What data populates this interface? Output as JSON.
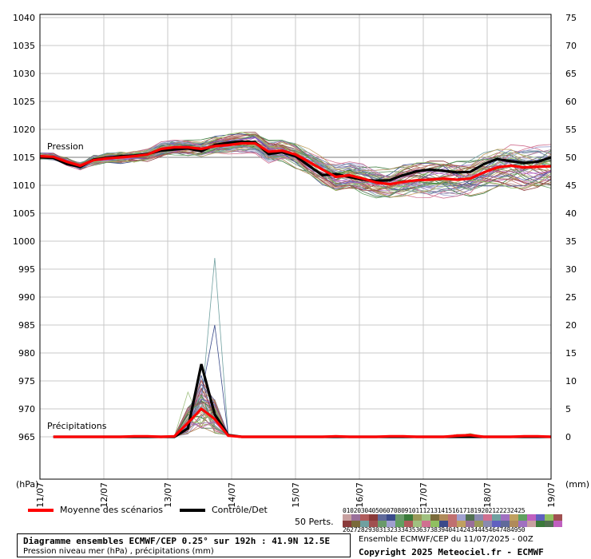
{
  "chart_data": {
    "type": "line",
    "pressure_axis": {
      "label": "(hPa)",
      "range": [
        965,
        1040
      ],
      "ticks": [
        965,
        970,
        975,
        980,
        985,
        990,
        995,
        1000,
        1005,
        1010,
        1015,
        1020,
        1025,
        1030,
        1035,
        1040
      ]
    },
    "precip_axis": {
      "label": "(mm)",
      "range": [
        0,
        75
      ],
      "ticks": [
        0,
        5,
        10,
        15,
        20,
        25,
        30,
        35,
        40,
        45,
        50,
        55,
        60,
        65,
        70,
        75
      ]
    },
    "x_ticks": [
      "11/07",
      "12/07",
      "13/07",
      "14/07",
      "15/07",
      "16/07",
      "17/07",
      "18/07",
      "19/07"
    ],
    "annotations": {
      "pressure": "Pression",
      "precip": "Précipitations"
    },
    "grid": true,
    "reference_line_hpa": 1015,
    "step_hours": 6,
    "series": [
      {
        "name": "Moyenne des scénarios",
        "color": "#ff0000",
        "pressure": [
          1015.2,
          1015.1,
          1014.2,
          1013.5,
          1014.5,
          1014.8,
          1015.0,
          1015.2,
          1015.5,
          1016.5,
          1016.8,
          1016.8,
          1016.5,
          1017.0,
          1017.2,
          1017.5,
          1017.5,
          1016.0,
          1016.2,
          1015.5,
          1014.2,
          1012.8,
          1011.5,
          1011.8,
          1011.2,
          1010.5,
          1010.2,
          1010.6,
          1010.9,
          1011.0,
          1011.2,
          1011.0,
          1011.2,
          1012.3,
          1013.2,
          1013.5,
          1013.2,
          1013.3,
          1013.4
        ],
        "precip": [
          null,
          0,
          0,
          0,
          0,
          0,
          0,
          0.1,
          0.1,
          0,
          0.1,
          2.5,
          5,
          3.2,
          0.2,
          0,
          0,
          0,
          0,
          0,
          0,
          0,
          0.1,
          0,
          0,
          0,
          0.1,
          0.1,
          0,
          0,
          0,
          0.2,
          0.3,
          0,
          0,
          0,
          0.1,
          0.1,
          0
        ]
      },
      {
        "name": "Contrôle/Det",
        "color": "#000000",
        "pressure": [
          1015.0,
          1014.9,
          1013.8,
          1013.3,
          1014.6,
          1014.9,
          1015.2,
          1015.3,
          1015.6,
          1016.2,
          1016.4,
          1016.6,
          1016.1,
          1017.2,
          1017.6,
          1017.8,
          1017.7,
          1015.6,
          1015.9,
          1015.2,
          1013.5,
          1011.8,
          1012.0,
          1011.5,
          1011.0,
          1010.8,
          1010.9,
          1011.8,
          1012.5,
          1012.8,
          1012.6,
          1012.3,
          1012.4,
          1013.8,
          1014.7,
          1014.3,
          1014.0,
          1014.2,
          1015.0
        ],
        "precip": [
          null,
          0,
          0,
          0,
          0,
          0,
          0,
          0,
          0,
          0,
          0,
          1.5,
          13,
          4,
          0.3,
          0,
          0,
          0,
          0,
          0,
          0,
          0,
          0,
          0,
          0,
          0,
          0,
          0,
          0,
          0,
          0,
          0,
          0,
          0,
          0,
          0,
          0,
          0,
          0
        ]
      }
    ]
  },
  "legend": {
    "mean_label": "Moyenne des scénarios",
    "control_label": "Contrôle/Det",
    "perts_label": "50 Perts.",
    "numbers_top": "01020304050607080910111213141516171819202122232425",
    "numbers_bottom": "26272829303132333435363738394041424344454647484950",
    "colors": [
      "#c8a0a0",
      "#9a6f9a",
      "#b05c5c",
      "#8a3a3a",
      "#606a9a",
      "#3a4a8a",
      "#6a9a6a",
      "#3a7a3a",
      "#9a9a5a",
      "#a0c080",
      "#7a6a3a",
      "#b08a5a",
      "#c07070",
      "#a0a0d0",
      "#507050",
      "#8a8ab0",
      "#d07090",
      "#70a0a0",
      "#a070c0",
      "#c0a060",
      "#60a060",
      "#c060c0",
      "#6060c0",
      "#90c060",
      "#a05050"
    ]
  },
  "footer": {
    "title_line1": "Diagramme ensembles ECMWF/CEP 0.25° sur 192h : 41.9N 12.5E",
    "title_line2": "Pression niveau mer (hPa) , précipitations (mm)",
    "run_info": "Ensemble ECMWF/CEP du 11/07/2025 - 00Z",
    "copyright": "Copyright 2025 Meteociel.fr - ECMWF"
  }
}
